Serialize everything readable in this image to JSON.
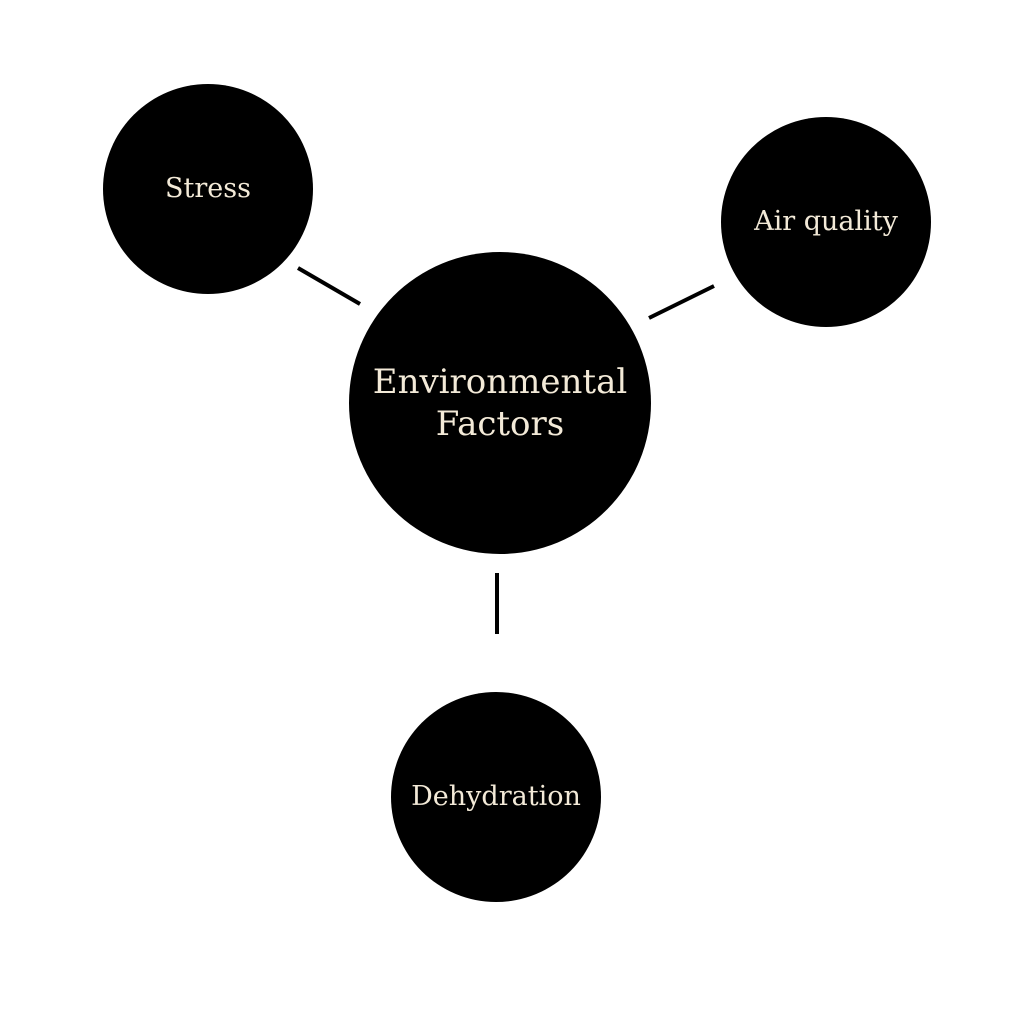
{
  "diagram": {
    "center": {
      "label_line1": "Environmental",
      "label_line2": "Factors"
    },
    "factors": [
      {
        "label": "Stress"
      },
      {
        "label": "Air quality"
      },
      {
        "label": "Dehydration"
      }
    ]
  },
  "colors": {
    "node_fill": "#000000",
    "node_text": "#f3ead8",
    "connector": "#000000",
    "background": "#ffffff"
  }
}
